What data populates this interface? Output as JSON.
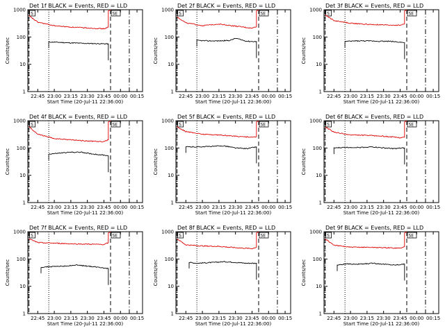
{
  "figure": {
    "xlabel": "Start Time (20-Jul-11 22:36:00)",
    "ylabel": "Counts/sec",
    "x_ticks": [
      "22:45",
      "23:00",
      "23:15",
      "23:30",
      "23:45",
      "00:00",
      "00:15"
    ],
    "y_ticks": [
      "1",
      "10",
      "100",
      "1000"
    ],
    "marker_labels": [
      "S",
      "SE"
    ],
    "colors": {
      "events": "#000000",
      "lld": "#e00000",
      "axes": "#000000",
      "background": "#ffffff"
    }
  },
  "chart_data": [
    {
      "type": "line",
      "title": "Det 1f BLACK = Events, RED = LLD",
      "xlabel": "Start Time (20-Jul-11 22:36:00)",
      "ylabel": "Counts/sec",
      "y_scale": "log",
      "ylim": [
        1,
        1000
      ],
      "xlim": [
        "22:36",
        "00:20"
      ],
      "markers": [
        {
          "label": "S",
          "x": "22:37"
        },
        {
          "label": "SE",
          "x": "23:51"
        }
      ],
      "dotted_x": "22:55",
      "dashdot_x": "00:08",
      "data_end_x": "23:49",
      "series": [
        {
          "name": "Events",
          "color": "#000000",
          "x": [
            "22:55",
            "23:00",
            "23:10",
            "23:20",
            "23:30",
            "23:40",
            "23:49"
          ],
          "y": [
            65,
            65,
            62,
            60,
            58,
            57,
            56
          ]
        },
        {
          "name": "LLD",
          "color": "#e00000",
          "x": [
            "22:37",
            "22:45",
            "23:00",
            "23:15",
            "23:30",
            "23:45",
            "23:49"
          ],
          "y": [
            600,
            350,
            260,
            230,
            215,
            200,
            230
          ]
        }
      ]
    },
    {
      "type": "line",
      "title": "Det 2f BLACK = Events, RED = LLD",
      "xlabel": "Start Time (20-Jul-11 22:36:00)",
      "ylabel": "Counts/sec",
      "y_scale": "log",
      "ylim": [
        1,
        1000
      ],
      "xlim": [
        "22:36",
        "00:20"
      ],
      "markers": [
        {
          "label": "S",
          "x": "22:37"
        },
        {
          "label": "SE",
          "x": "23:51"
        }
      ],
      "dotted_x": "22:55",
      "dashdot_x": "00:08",
      "data_end_x": "23:49",
      "series": [
        {
          "name": "Events",
          "color": "#000000",
          "x": [
            "22:55",
            "23:05",
            "23:15",
            "23:25",
            "23:30",
            "23:40",
            "23:49"
          ],
          "y": [
            75,
            72,
            72,
            75,
            90,
            70,
            68
          ]
        },
        {
          "name": "LLD",
          "color": "#e00000",
          "x": [
            "22:37",
            "22:45",
            "23:00",
            "23:15",
            "23:30",
            "23:45",
            "23:49"
          ],
          "y": [
            550,
            330,
            260,
            300,
            250,
            210,
            240
          ]
        }
      ]
    },
    {
      "type": "line",
      "title": "Det 3f BLACK = Events, RED = LLD",
      "xlabel": "Start Time (20-Jul-11 22:36:00)",
      "ylabel": "Counts/sec",
      "y_scale": "log",
      "ylim": [
        1,
        1000
      ],
      "xlim": [
        "22:36",
        "00:20"
      ],
      "markers": [
        {
          "label": "S",
          "x": "22:37"
        },
        {
          "label": "SE",
          "x": "23:51"
        }
      ],
      "dotted_x": "22:55",
      "dashdot_x": "00:08",
      "data_end_x": "23:49",
      "series": [
        {
          "name": "Events",
          "color": "#000000",
          "x": [
            "22:55",
            "23:05",
            "23:15",
            "23:25",
            "23:35",
            "23:45",
            "23:49"
          ],
          "y": [
            68,
            72,
            72,
            70,
            70,
            65,
            62
          ]
        },
        {
          "name": "LLD",
          "color": "#e00000",
          "x": [
            "22:37",
            "22:45",
            "23:00",
            "23:15",
            "23:30",
            "23:45",
            "23:49"
          ],
          "y": [
            650,
            400,
            320,
            290,
            275,
            270,
            300
          ]
        }
      ]
    },
    {
      "type": "line",
      "title": "Det 4f BLACK = Events, RED = LLD",
      "xlabel": "Start Time (20-Jul-11 22:36:00)",
      "ylabel": "Counts/sec",
      "y_scale": "log",
      "ylim": [
        1,
        1000
      ],
      "xlim": [
        "22:36",
        "00:20"
      ],
      "markers": [
        {
          "label": "S",
          "x": "22:37"
        },
        {
          "label": "SE",
          "x": "23:51"
        }
      ],
      "dotted_x": "22:55",
      "dashdot_x": "00:08",
      "data_end_x": "23:49",
      "series": [
        {
          "name": "Events",
          "color": "#000000",
          "x": [
            "22:55",
            "23:05",
            "23:15",
            "23:25",
            "23:35",
            "23:45",
            "23:49"
          ],
          "y": [
            60,
            65,
            70,
            70,
            60,
            55,
            52
          ]
        },
        {
          "name": "LLD",
          "color": "#e00000",
          "x": [
            "22:37",
            "22:45",
            "23:00",
            "23:15",
            "23:30",
            "23:45",
            "23:49"
          ],
          "y": [
            600,
            320,
            220,
            200,
            180,
            170,
            200
          ]
        }
      ]
    },
    {
      "type": "line",
      "title": "Det 5f BLACK = Events, RED = LLD",
      "xlabel": "Start Time (20-Jul-11 22:36:00)",
      "ylabel": "Counts/sec",
      "y_scale": "log",
      "ylim": [
        1,
        1000
      ],
      "xlim": [
        "22:36",
        "00:20"
      ],
      "markers": [
        {
          "label": "S",
          "x": "22:37"
        },
        {
          "label": "SE",
          "x": "23:51"
        }
      ],
      "dotted_x": "22:55",
      "dashdot_x": "00:08",
      "data_end_x": "23:49",
      "series": [
        {
          "name": "Events",
          "color": "#000000",
          "x": [
            "22:45",
            "22:55",
            "23:10",
            "23:20",
            "23:30",
            "23:40",
            "23:49"
          ],
          "y": [
            110,
            110,
            115,
            120,
            100,
            95,
            110
          ]
        },
        {
          "name": "LLD",
          "color": "#e00000",
          "x": [
            "22:37",
            "22:45",
            "23:00",
            "23:15",
            "23:30",
            "23:45",
            "23:49"
          ],
          "y": [
            600,
            400,
            320,
            300,
            270,
            250,
            260
          ]
        }
      ]
    },
    {
      "type": "line",
      "title": "Det 6f BLACK = Events, RED = LLD",
      "xlabel": "Start Time (20-Jul-11 22:36:00)",
      "ylabel": "Counts/sec",
      "y_scale": "log",
      "ylim": [
        1,
        1000
      ],
      "xlim": [
        "22:36",
        "00:20"
      ],
      "markers": [
        {
          "label": "S",
          "x": "22:37"
        },
        {
          "label": "SE",
          "x": "23:51"
        }
      ],
      "dotted_x": "22:55",
      "dashdot_x": "00:08",
      "data_end_x": "23:49",
      "series": [
        {
          "name": "Events",
          "color": "#000000",
          "x": [
            "22:45",
            "22:55",
            "23:10",
            "23:20",
            "23:30",
            "23:40",
            "23:49"
          ],
          "y": [
            100,
            105,
            105,
            110,
            100,
            95,
            100
          ]
        },
        {
          "name": "LLD",
          "color": "#e00000",
          "x": [
            "22:37",
            "22:45",
            "23:00",
            "23:15",
            "23:30",
            "23:45",
            "23:49"
          ],
          "y": [
            600,
            380,
            300,
            290,
            270,
            240,
            250
          ]
        }
      ]
    },
    {
      "type": "line",
      "title": "Det 7f BLACK = Events, RED = LLD",
      "xlabel": "Start Time (20-Jul-11 22:36:00)",
      "ylabel": "Counts/sec",
      "y_scale": "log",
      "ylim": [
        1,
        1000
      ],
      "xlim": [
        "22:36",
        "00:20"
      ],
      "markers": [
        {
          "label": "S",
          "x": "22:37"
        },
        {
          "label": "SE",
          "x": "23:51"
        }
      ],
      "dotted_x": "22:55",
      "dashdot_x": "00:08",
      "data_end_x": "23:49",
      "series": [
        {
          "name": "Events",
          "color": "#000000",
          "x": [
            "22:48",
            "22:55",
            "23:10",
            "23:20",
            "23:30",
            "23:40",
            "23:49"
          ],
          "y": [
            50,
            52,
            55,
            60,
            55,
            50,
            45
          ]
        },
        {
          "name": "LLD",
          "color": "#e00000",
          "x": [
            "22:37",
            "22:45",
            "23:00",
            "23:15",
            "23:30",
            "23:45",
            "23:49"
          ],
          "y": [
            550,
            400,
            380,
            360,
            350,
            340,
            400
          ]
        }
      ]
    },
    {
      "type": "line",
      "title": "Det 8f BLACK = Events, RED = LLD",
      "xlabel": "Start Time (20-Jul-11 22:36:00)",
      "ylabel": "Counts/sec",
      "y_scale": "log",
      "ylim": [
        1,
        1000
      ],
      "xlim": [
        "22:36",
        "00:20"
      ],
      "markers": [
        {
          "label": "S",
          "x": "22:37"
        },
        {
          "label": "SE",
          "x": "23:51"
        }
      ],
      "dotted_x": "22:55",
      "dashdot_x": "00:08",
      "data_end_x": "23:49",
      "series": [
        {
          "name": "Events",
          "color": "#000000",
          "x": [
            "22:48",
            "22:55",
            "23:10",
            "23:20",
            "23:30",
            "23:40",
            "23:49"
          ],
          "y": [
            75,
            70,
            75,
            80,
            75,
            70,
            70
          ]
        },
        {
          "name": "LLD",
          "color": "#e00000",
          "x": [
            "22:37",
            "22:45",
            "23:00",
            "23:15",
            "23:30",
            "23:45",
            "23:49"
          ],
          "y": [
            550,
            330,
            300,
            290,
            260,
            240,
            270
          ]
        }
      ]
    },
    {
      "type": "line",
      "title": "Det 9f BLACK = Events, RED = LLD",
      "xlabel": "Start Time (20-Jul-11 22:36:00)",
      "ylabel": "Counts/sec",
      "y_scale": "log",
      "ylim": [
        1,
        1000
      ],
      "xlim": [
        "22:36",
        "00:20"
      ],
      "markers": [
        {
          "label": "S",
          "x": "22:37"
        },
        {
          "label": "SE",
          "x": "23:51"
        }
      ],
      "dotted_x": "22:55",
      "dashdot_x": "00:08",
      "data_end_x": "23:49",
      "series": [
        {
          "name": "Events",
          "color": "#000000",
          "x": [
            "22:48",
            "22:55",
            "23:10",
            "23:20",
            "23:30",
            "23:40",
            "23:49"
          ],
          "y": [
            60,
            65,
            65,
            70,
            65,
            60,
            65
          ]
        },
        {
          "name": "LLD",
          "color": "#e00000",
          "x": [
            "22:37",
            "22:45",
            "23:00",
            "23:15",
            "23:30",
            "23:45",
            "23:49"
          ],
          "y": [
            550,
            320,
            270,
            270,
            260,
            250,
            280
          ]
        }
      ]
    }
  ]
}
